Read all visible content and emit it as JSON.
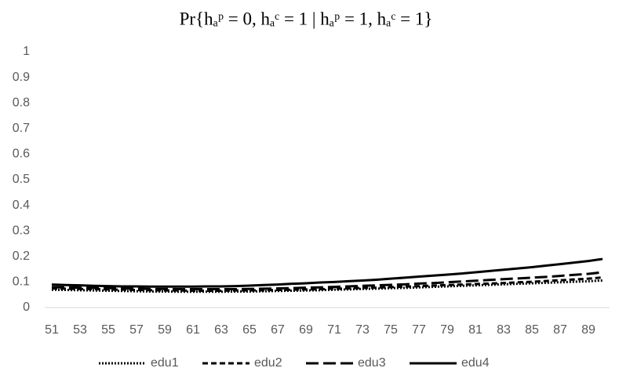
{
  "chart_data": {
    "type": "line",
    "title": "Pr{hₐᵖ = 0, hₐᶜ = 1 | hₐᵖ = 1, hₐᶜ = 1}",
    "categories": [
      "51",
      null,
      "53",
      null,
      "55",
      null,
      "57",
      null,
      "59",
      null,
      "61",
      null,
      "63",
      null,
      "65",
      null,
      "67",
      null,
      "69",
      null,
      "71",
      null,
      "73",
      null,
      "75",
      null,
      "77",
      null,
      "79",
      null,
      "81",
      null,
      "83",
      null,
      "85",
      null,
      "87",
      null,
      "89",
      null
    ],
    "series": [
      {
        "name": "edu1",
        "color": "#000000",
        "dash": "dotted",
        "values": [
          0.07,
          0.069,
          0.068,
          0.067,
          0.066,
          0.065,
          0.064,
          0.063,
          0.063,
          0.062,
          0.062,
          0.062,
          0.062,
          0.063,
          0.063,
          0.064,
          0.065,
          0.066,
          0.067,
          0.068,
          0.07,
          0.071,
          0.073,
          0.074,
          0.076,
          0.077,
          0.079,
          0.081,
          0.083,
          0.085,
          0.087,
          0.089,
          0.091,
          0.093,
          0.095,
          0.097,
          0.099,
          0.101,
          0.103,
          0.106
        ]
      },
      {
        "name": "edu2",
        "color": "#000000",
        "dash": "dashed",
        "values": [
          0.075,
          0.074,
          0.073,
          0.072,
          0.071,
          0.07,
          0.069,
          0.068,
          0.067,
          0.067,
          0.066,
          0.066,
          0.066,
          0.067,
          0.067,
          0.068,
          0.069,
          0.07,
          0.071,
          0.072,
          0.074,
          0.075,
          0.077,
          0.078,
          0.08,
          0.082,
          0.084,
          0.086,
          0.088,
          0.09,
          0.092,
          0.094,
          0.096,
          0.099,
          0.101,
          0.104,
          0.107,
          0.11,
          0.113,
          0.118
        ]
      },
      {
        "name": "edu3",
        "color": "#000000",
        "dash": "longdash",
        "values": [
          0.08,
          0.079,
          0.078,
          0.077,
          0.076,
          0.075,
          0.074,
          0.073,
          0.073,
          0.072,
          0.072,
          0.072,
          0.072,
          0.072,
          0.073,
          0.074,
          0.075,
          0.076,
          0.078,
          0.079,
          0.081,
          0.083,
          0.085,
          0.087,
          0.089,
          0.091,
          0.094,
          0.096,
          0.099,
          0.102,
          0.105,
          0.108,
          0.111,
          0.114,
          0.117,
          0.12,
          0.124,
          0.128,
          0.132,
          0.138
        ]
      },
      {
        "name": "edu4",
        "color": "#000000",
        "dash": "solid",
        "values": [
          0.09,
          0.088,
          0.087,
          0.085,
          0.084,
          0.083,
          0.083,
          0.082,
          0.082,
          0.082,
          0.082,
          0.083,
          0.083,
          0.084,
          0.086,
          0.088,
          0.09,
          0.093,
          0.095,
          0.098,
          0.1,
          0.103,
          0.106,
          0.109,
          0.113,
          0.117,
          0.121,
          0.125,
          0.129,
          0.133,
          0.138,
          0.143,
          0.148,
          0.153,
          0.158,
          0.164,
          0.17,
          0.176,
          0.182,
          0.19
        ]
      }
    ],
    "ylim": [
      0,
      1
    ],
    "yticks": [
      0,
      0.1,
      0.2,
      0.3,
      0.4,
      0.5,
      0.6,
      0.7,
      0.8,
      0.9,
      1
    ],
    "grid": false,
    "legend": "bottom"
  }
}
